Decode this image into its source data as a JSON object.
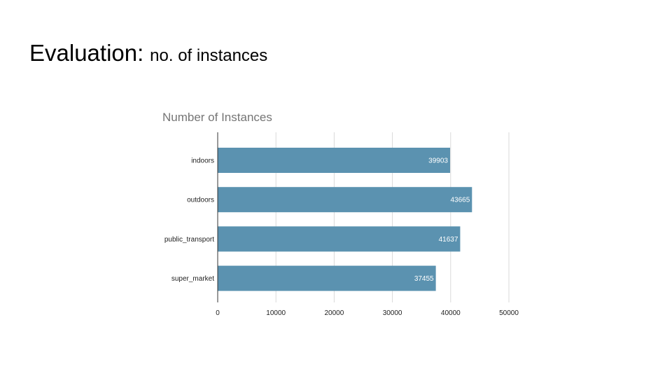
{
  "slide": {
    "title_main": "Evaluation:",
    "title_sub": "no. of instances"
  },
  "colors": {
    "bar": "#5b92b0",
    "grid": "#d9d9d9",
    "axis": "#333333",
    "label_text": "#222222",
    "title_text": "#757575",
    "value_text": "#ffffff"
  },
  "chart_data": {
    "type": "bar",
    "orientation": "horizontal",
    "title": "Number of Instances",
    "categories": [
      "indoors",
      "outdoors",
      "public_transport",
      "super_market"
    ],
    "values": [
      39903,
      43665,
      41637,
      37455
    ],
    "x_ticks": [
      0,
      10000,
      20000,
      30000,
      40000,
      50000
    ],
    "xlim": [
      0,
      50000
    ],
    "grid": true,
    "data_labels": true,
    "legend": false,
    "xlabel": "",
    "ylabel": ""
  }
}
